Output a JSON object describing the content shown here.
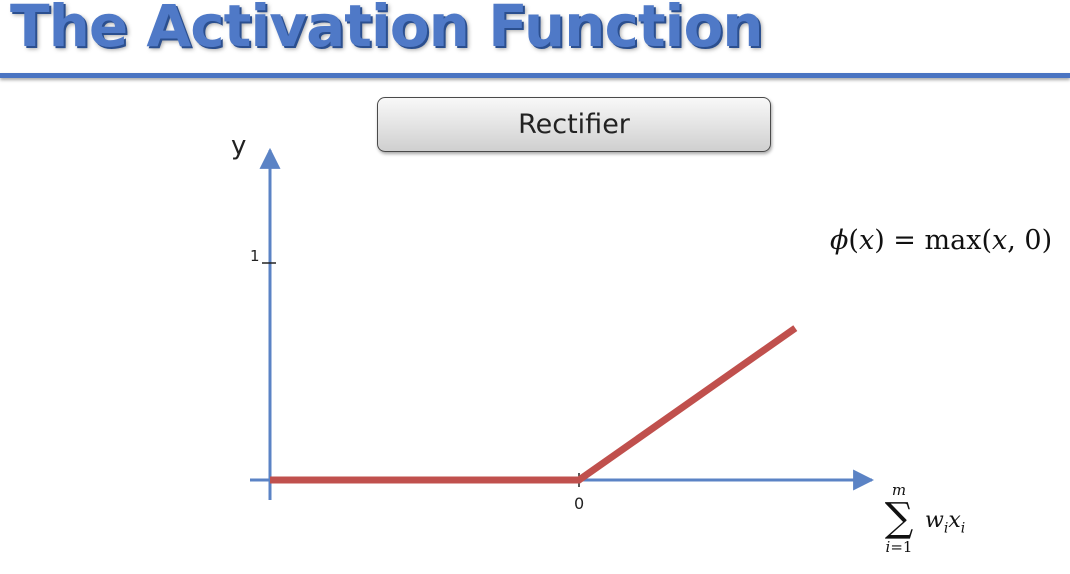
{
  "slide": {
    "title": "The Activation Function",
    "box_label": "Rectifier",
    "colors": {
      "title": "#4f79c7",
      "axis": "#5b83c5",
      "curve": "#c0504d"
    }
  },
  "formula": {
    "lhs_func": "ϕ",
    "lhs_var": "x",
    "op": "max",
    "arg1": "x",
    "arg2": "0"
  },
  "xaxis_label": {
    "sum_upper": "m",
    "sum_symbol": "∑",
    "sum_index": "i",
    "sum_lower_value": "=1",
    "term_w": "w",
    "term_x": "x",
    "sub": "i"
  },
  "chart_data": {
    "type": "line",
    "title": "",
    "xlabel": "",
    "ylabel": "y",
    "x_tick_labels": [
      "0"
    ],
    "y_tick_labels": [
      "1"
    ],
    "xlim": [
      -1,
      0.7
    ],
    "ylim": [
      0,
      1.2
    ],
    "series": [
      {
        "x": [
          -1,
          0,
          0.7
        ],
        "y": [
          0,
          0,
          0.7
        ]
      }
    ]
  }
}
